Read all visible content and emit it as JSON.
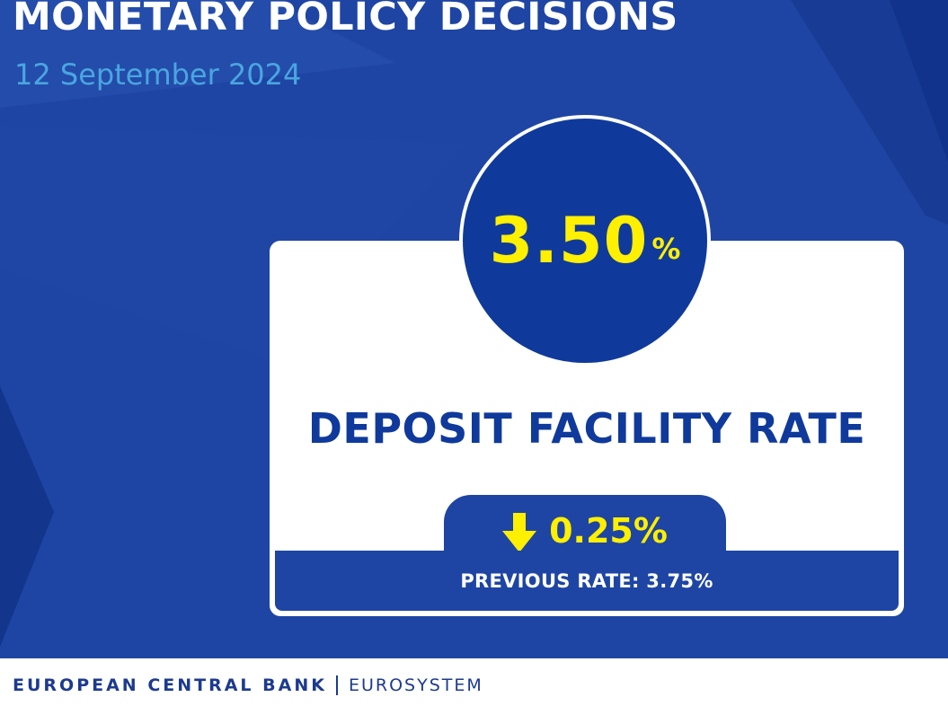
{
  "header": {
    "title": "MONETARY POLICY DECISIONS",
    "date": "12 September 2024"
  },
  "rate": {
    "value": "3.50",
    "unit": "%",
    "label": "DEPOSIT FACILITY RATE",
    "change": "0.25%",
    "change_direction": "down",
    "change_icon": "arrow-down-icon",
    "previous": "PREVIOUS RATE: 3.75%"
  },
  "footer": {
    "bank": "EUROPEAN CENTRAL BANK",
    "system": "EUROSYSTEM"
  },
  "colors": {
    "background": "#1e45a3",
    "circle": "#0f3a9c",
    "accent": "#ffef00",
    "label": "#0f3a9c",
    "date": "#49a6e0"
  }
}
